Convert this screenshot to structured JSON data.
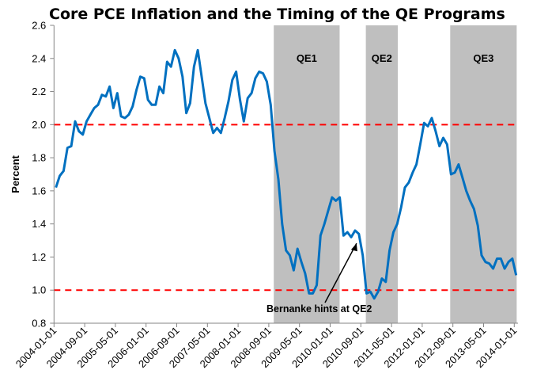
{
  "chart_data": {
    "type": "line",
    "title": "Core PCE Inflation and the Timing of the QE Programs",
    "xlabel": "",
    "ylabel": "Percent",
    "ylim": [
      0.8,
      2.6
    ],
    "yticks": [
      "0.8",
      "1.0",
      "1.2",
      "1.4",
      "1.6",
      "1.8",
      "2.0",
      "2.2",
      "2.4",
      "2.6"
    ],
    "x_start": "2004-01-01",
    "x_frequency": "monthly",
    "xticks": [
      "2004-01-01",
      "2004-09-01",
      "2005-05-01",
      "2006-01-01",
      "2006-09-01",
      "2007-05-01",
      "2008-01-01",
      "2008-09-01",
      "2009-05-01",
      "2010-01-01",
      "2010-09-01",
      "2011-05-01",
      "2012-01-01",
      "2012-09-01",
      "2013-05-01",
      "2014-01-01"
    ],
    "grid": false,
    "legend": "none",
    "series": [
      {
        "color": "#0070C0",
        "values": [
          1.62,
          1.69,
          1.72,
          1.86,
          1.87,
          2.02,
          1.96,
          1.94,
          2.02,
          2.06,
          2.1,
          2.12,
          2.18,
          2.17,
          2.23,
          2.1,
          2.19,
          2.05,
          2.04,
          2.06,
          2.11,
          2.21,
          2.29,
          2.28,
          2.15,
          2.12,
          2.12,
          2.23,
          2.19,
          2.38,
          2.35,
          2.45,
          2.4,
          2.29,
          2.07,
          2.13,
          2.35,
          2.45,
          2.29,
          2.13,
          2.04,
          1.95,
          1.98,
          1.95,
          2.04,
          2.14,
          2.27,
          2.32,
          2.15,
          2.02,
          2.16,
          2.19,
          2.28,
          2.32,
          2.31,
          2.26,
          2.12,
          1.84,
          1.67,
          1.4,
          1.24,
          1.21,
          1.12,
          1.25,
          1.17,
          1.1,
          0.98,
          0.98,
          1.03,
          1.33,
          1.4,
          1.48,
          1.56,
          1.54,
          1.56,
          1.33,
          1.35,
          1.32,
          1.36,
          1.34,
          1.21,
          0.98,
          0.99,
          0.95,
          0.99,
          1.07,
          1.05,
          1.24,
          1.35,
          1.4,
          1.5,
          1.62,
          1.65,
          1.71,
          1.76,
          1.88,
          2.01,
          1.99,
          2.04,
          1.96,
          1.87,
          1.92,
          1.88,
          1.7,
          1.71,
          1.76,
          1.68,
          1.6,
          1.54,
          1.49,
          1.39,
          1.21,
          1.17,
          1.16,
          1.13,
          1.19,
          1.19,
          1.13,
          1.17,
          1.19,
          1.09
        ]
      }
    ],
    "reference_lines": [
      {
        "y": 2.0,
        "color": "#FF0000",
        "style": "dashed"
      },
      {
        "y": 1.0,
        "color": "#FF0000",
        "style": "dashed"
      }
    ],
    "shaded_regions": [
      {
        "label": "QE1",
        "start": "2008-10-10",
        "end": "2010-03-15",
        "color": "#BFBFBF"
      },
      {
        "label": "QE2",
        "start": "2010-10-10",
        "end": "2011-06-20",
        "color": "#BFBFBF"
      },
      {
        "label": "QE3",
        "start": "2012-08-10",
        "end": "2014-01-20",
        "color": "#BFBFBF"
      }
    ],
    "annotations": [
      {
        "text": "Bernanke hints at QE2",
        "points_to": "2010-08-01"
      }
    ]
  }
}
